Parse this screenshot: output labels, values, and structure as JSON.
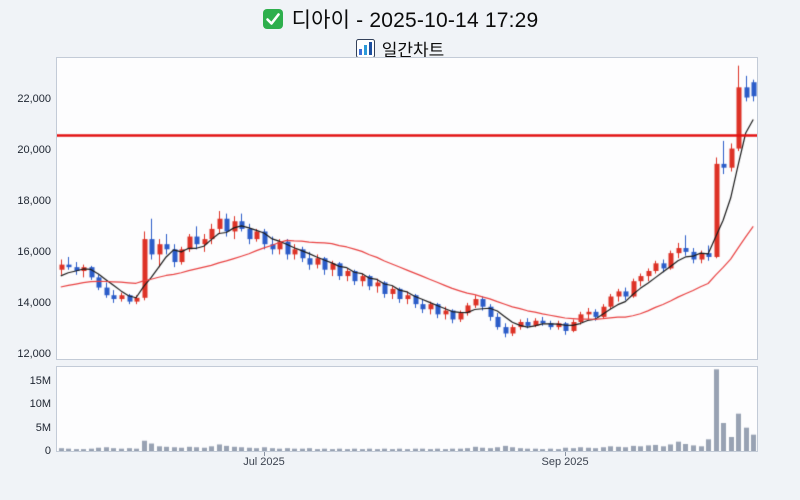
{
  "chart_data": {
    "type": "candlestick",
    "title": "디아이 - 2025-10-14 17:29",
    "subtitle": "일간차트",
    "y_axis": {
      "min": 11800,
      "max": 23600,
      "ticks": [
        12000,
        14000,
        16000,
        18000,
        20000,
        22000
      ],
      "tick_labels": [
        "12,000",
        "14,000",
        "16,000",
        "18,000",
        "20,000",
        "22,000"
      ]
    },
    "volume_axis": {
      "max_millions": 18,
      "ticks_millions": [
        0,
        5,
        10,
        15
      ],
      "tick_labels": [
        "0",
        "5M",
        "10M",
        "15M"
      ]
    },
    "x_axis_labels": [
      {
        "label": "Jul 2025",
        "index": 27
      },
      {
        "label": "Sep 2025",
        "index": 67
      }
    ],
    "reference_line": {
      "price": 20600,
      "color": "#e31212"
    },
    "moving_averages": [
      {
        "window": 5,
        "color": "#1a1a1a"
      },
      {
        "window": 20,
        "color": "#e84040"
      }
    ],
    "ma_seed_closes": [
      14150,
      14200,
      14250,
      14300,
      14350,
      14400,
      14450,
      14500,
      14550,
      14600,
      14600,
      14650,
      14700,
      14700,
      14750,
      14800,
      14900,
      15000,
      15100
    ],
    "colors": {
      "up": "#dd3226",
      "down": "#2b5cc8",
      "volume": "#98a2b3",
      "panel_border": "#c3cbd7",
      "panel_bg": "#fdfdfe"
    },
    "candles_format": [
      "open",
      "high",
      "low",
      "close",
      "volume_millions"
    ],
    "candles": [
      [
        15300,
        15700,
        15100,
        15500,
        0.6
      ],
      [
        15500,
        15800,
        15300,
        15400,
        0.5
      ],
      [
        15400,
        15600,
        15100,
        15250,
        0.4
      ],
      [
        15250,
        15500,
        15000,
        15400,
        0.4
      ],
      [
        15400,
        15450,
        14900,
        15000,
        0.5
      ],
      [
        15000,
        15100,
        14500,
        14600,
        0.7
      ],
      [
        14600,
        14800,
        14200,
        14300,
        0.8
      ],
      [
        14300,
        14500,
        14000,
        14150,
        0.6
      ],
      [
        14150,
        14400,
        14050,
        14300,
        0.5
      ],
      [
        14300,
        14350,
        13950,
        14050,
        0.6
      ],
      [
        14050,
        14300,
        13950,
        14200,
        0.5
      ],
      [
        14200,
        16800,
        14100,
        16500,
        2.2
      ],
      [
        16500,
        17300,
        15700,
        15900,
        1.6
      ],
      [
        15900,
        16500,
        15400,
        16300,
        1.0
      ],
      [
        16300,
        16700,
        15900,
        16100,
        0.9
      ],
      [
        16100,
        16300,
        15400,
        15600,
        0.8
      ],
      [
        15600,
        16200,
        15500,
        16100,
        0.7
      ],
      [
        16100,
        16700,
        16000,
        16600,
        0.9
      ],
      [
        16600,
        17000,
        16100,
        16300,
        0.8
      ],
      [
        16300,
        16700,
        16000,
        16500,
        0.7
      ],
      [
        16500,
        17100,
        16300,
        16900,
        1.0
      ],
      [
        16900,
        17600,
        16700,
        17300,
        1.4
      ],
      [
        17300,
        17500,
        16600,
        16800,
        1.1
      ],
      [
        16800,
        17400,
        16500,
        17200,
        0.9
      ],
      [
        17200,
        17500,
        16800,
        16900,
        0.8
      ],
      [
        16900,
        17100,
        16300,
        16500,
        0.7
      ],
      [
        16500,
        16900,
        16400,
        16800,
        0.6
      ],
      [
        16800,
        16900,
        16100,
        16300,
        0.8
      ],
      [
        16300,
        16600,
        15900,
        16100,
        0.6
      ],
      [
        16100,
        16500,
        15900,
        16400,
        0.5
      ],
      [
        16400,
        16500,
        15700,
        15900,
        0.6
      ],
      [
        15900,
        16300,
        15700,
        16100,
        0.5
      ],
      [
        16100,
        16200,
        15600,
        15750,
        0.5
      ],
      [
        15750,
        16000,
        15300,
        15500,
        0.6
      ],
      [
        15500,
        15900,
        15350,
        15750,
        0.4
      ],
      [
        15750,
        15800,
        15100,
        15300,
        0.5
      ],
      [
        15300,
        15650,
        15050,
        15550,
        0.4
      ],
      [
        15550,
        15600,
        14900,
        15050,
        0.5
      ],
      [
        15050,
        15350,
        14850,
        15250,
        0.4
      ],
      [
        15250,
        15300,
        14700,
        14850,
        0.5
      ],
      [
        14850,
        15150,
        14650,
        15050,
        0.4
      ],
      [
        15050,
        15100,
        14500,
        14650,
        0.5
      ],
      [
        14650,
        14950,
        14400,
        14800,
        0.4
      ],
      [
        14800,
        14850,
        14200,
        14350,
        0.5
      ],
      [
        14350,
        14650,
        14150,
        14550,
        0.4
      ],
      [
        14550,
        14600,
        14000,
        14150,
        0.5
      ],
      [
        14150,
        14450,
        13950,
        14300,
        0.4
      ],
      [
        14300,
        14350,
        13800,
        13950,
        0.5
      ],
      [
        13950,
        14150,
        13600,
        13750,
        0.5
      ],
      [
        13750,
        14050,
        13550,
        13950,
        0.4
      ],
      [
        13950,
        14000,
        13400,
        13550,
        0.5
      ],
      [
        13550,
        13850,
        13350,
        13700,
        0.4
      ],
      [
        13700,
        13750,
        13200,
        13350,
        0.5
      ],
      [
        13350,
        13700,
        13250,
        13600,
        0.5
      ],
      [
        13600,
        14000,
        13500,
        13900,
        0.6
      ],
      [
        13900,
        14300,
        13800,
        14150,
        0.9
      ],
      [
        14150,
        14250,
        13700,
        13850,
        0.7
      ],
      [
        13850,
        13950,
        13300,
        13450,
        0.6
      ],
      [
        13450,
        13600,
        12950,
        13050,
        0.8
      ],
      [
        13050,
        13200,
        12650,
        12800,
        1.1
      ],
      [
        12800,
        13150,
        12700,
        13050,
        0.8
      ],
      [
        13050,
        13350,
        12950,
        13250,
        0.6
      ],
      [
        13250,
        13400,
        13000,
        13100,
        0.5
      ],
      [
        13100,
        13400,
        13050,
        13300,
        0.5
      ],
      [
        13300,
        13450,
        13100,
        13200,
        0.4
      ],
      [
        13200,
        13300,
        12950,
        13050,
        0.5
      ],
      [
        13050,
        13300,
        12950,
        13200,
        0.4
      ],
      [
        13200,
        13250,
        12750,
        12900,
        0.7
      ],
      [
        12900,
        13350,
        12850,
        13250,
        0.6
      ],
      [
        13250,
        13650,
        13150,
        13550,
        0.8
      ],
      [
        13550,
        13800,
        13350,
        13650,
        0.7
      ],
      [
        13650,
        13750,
        13300,
        13450,
        0.6
      ],
      [
        13450,
        13950,
        13400,
        13850,
        0.8
      ],
      [
        13850,
        14350,
        13750,
        14250,
        1.0
      ],
      [
        14250,
        14550,
        14050,
        14450,
        0.9
      ],
      [
        14450,
        14600,
        14100,
        14250,
        0.8
      ],
      [
        14250,
        14950,
        14200,
        14850,
        1.1
      ],
      [
        14850,
        15150,
        14650,
        15050,
        1.0
      ],
      [
        15050,
        15350,
        14850,
        15250,
        1.2
      ],
      [
        15250,
        15650,
        15150,
        15550,
        1.3
      ],
      [
        15550,
        15700,
        15200,
        15350,
        1.0
      ],
      [
        15350,
        16050,
        15300,
        15950,
        1.4
      ],
      [
        15950,
        16350,
        15750,
        16150,
        2.0
      ],
      [
        16150,
        16650,
        15850,
        16000,
        1.5
      ],
      [
        16000,
        16150,
        15550,
        15700,
        1.2
      ],
      [
        15700,
        16050,
        15550,
        15950,
        1.0
      ],
      [
        15950,
        16250,
        15650,
        15800,
        2.5
      ],
      [
        15800,
        19700,
        15750,
        19450,
        17.5
      ],
      [
        19450,
        20350,
        19050,
        19300,
        6.0
      ],
      [
        19300,
        20250,
        19150,
        20050,
        3.0
      ],
      [
        20050,
        23300,
        19950,
        22450,
        8.0
      ],
      [
        22450,
        22900,
        21900,
        22050,
        5.0
      ],
      [
        22650,
        22750,
        21900,
        22100,
        3.5
      ]
    ]
  }
}
